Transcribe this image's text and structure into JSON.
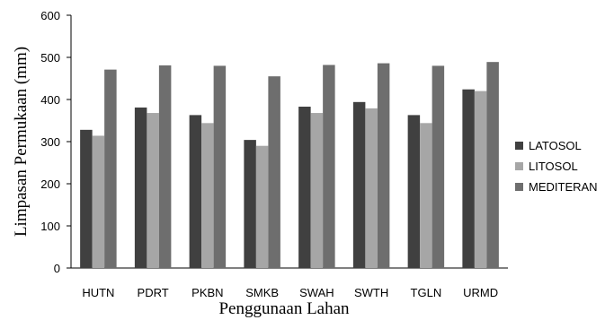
{
  "chart_data": {
    "type": "bar",
    "title": "",
    "xlabel": "Penggunaan Lahan",
    "ylabel": "Limpasan Permukaan (mm)",
    "categories": [
      "HUTN",
      "PDRT",
      "PKBN",
      "SMKB",
      "SWAH",
      "SWTH",
      "TGLN",
      "URMD"
    ],
    "series": [
      {
        "name": "LATOSOL",
        "color": "#404040",
        "values": [
          328,
          381,
          363,
          304,
          383,
          394,
          363,
          424
        ]
      },
      {
        "name": "LITOSOL",
        "color": "#a6a6a6",
        "values": [
          314,
          368,
          344,
          290,
          368,
          379,
          344,
          420
        ]
      },
      {
        "name": "MEDITERAN",
        "color": "#6e6e6e",
        "values": [
          471,
          481,
          480,
          455,
          482,
          486,
          480,
          489
        ]
      }
    ],
    "ylim": [
      0,
      600
    ],
    "yticks": [
      0,
      100,
      200,
      300,
      400,
      500,
      600
    ],
    "grid": false,
    "legend_position": "right"
  }
}
